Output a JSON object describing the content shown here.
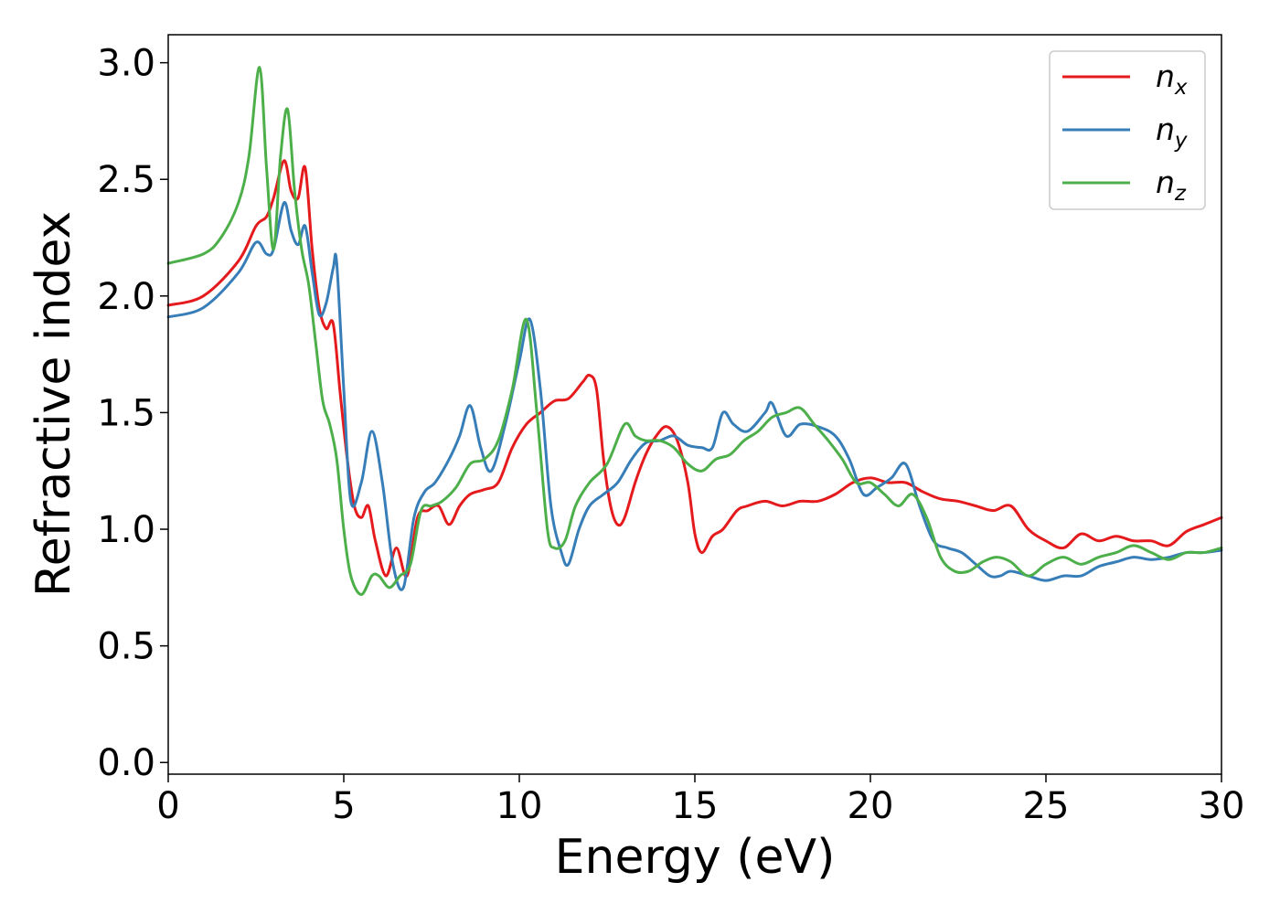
{
  "chart_data": {
    "type": "line",
    "title": "",
    "xlabel": "Energy (eV)",
    "ylabel": "Refractive index",
    "xlim": [
      0,
      30
    ],
    "ylim": [
      -0.05,
      3.12
    ],
    "xticks": [
      0,
      5,
      10,
      15,
      20,
      25,
      30
    ],
    "xtick_labels": [
      "0",
      "5",
      "10",
      "15",
      "20",
      "25",
      "30"
    ],
    "yticks": [
      0.0,
      0.5,
      1.0,
      1.5,
      2.0,
      2.5,
      3.0
    ],
    "ytick_labels": [
      "0.0",
      "0.5",
      "1.0",
      "1.5",
      "2.0",
      "2.5",
      "3.0"
    ],
    "grid": false,
    "legend_position": "top-right",
    "series": [
      {
        "name": "n",
        "subscript": "x",
        "color": "#e41a1c",
        "x": [
          0,
          1,
          2,
          2.5,
          2.8,
          3.0,
          3.3,
          3.5,
          3.7,
          3.9,
          4.1,
          4.3,
          4.5,
          4.7,
          4.9,
          5.1,
          5.3,
          5.5,
          5.7,
          5.9,
          6.2,
          6.5,
          6.8,
          7.1,
          7.4,
          7.7,
          8.0,
          8.3,
          8.6,
          9.0,
          9.4,
          9.8,
          10.2,
          10.6,
          11.0,
          11.4,
          11.8,
          12.0,
          12.2,
          12.4,
          12.6,
          12.8,
          13.0,
          13.3,
          13.6,
          13.9,
          14.2,
          14.5,
          14.8,
          15.0,
          15.2,
          15.5,
          15.8,
          16.2,
          16.5,
          17.0,
          17.5,
          18.0,
          18.5,
          19.0,
          19.5,
          20.0,
          20.5,
          21.0,
          21.5,
          22.0,
          22.5,
          23.0,
          23.5,
          24.0,
          24.5,
          25.0,
          25.5,
          26.0,
          26.5,
          27.0,
          27.5,
          28.0,
          28.5,
          29.0,
          29.5,
          30.0
        ],
        "y": [
          1.96,
          2.0,
          2.15,
          2.3,
          2.34,
          2.42,
          2.58,
          2.45,
          2.42,
          2.55,
          2.2,
          1.95,
          1.86,
          1.88,
          1.58,
          1.3,
          1.1,
          1.05,
          1.1,
          0.95,
          0.8,
          0.92,
          0.8,
          1.05,
          1.08,
          1.1,
          1.02,
          1.1,
          1.15,
          1.17,
          1.2,
          1.35,
          1.45,
          1.5,
          1.55,
          1.56,
          1.63,
          1.66,
          1.6,
          1.3,
          1.1,
          1.02,
          1.05,
          1.2,
          1.32,
          1.4,
          1.44,
          1.38,
          1.2,
          0.98,
          0.9,
          0.97,
          1.0,
          1.08,
          1.1,
          1.12,
          1.1,
          1.12,
          1.12,
          1.15,
          1.2,
          1.22,
          1.2,
          1.2,
          1.16,
          1.13,
          1.12,
          1.1,
          1.08,
          1.1,
          1.0,
          0.95,
          0.92,
          0.98,
          0.95,
          0.97,
          0.95,
          0.95,
          0.93,
          0.99,
          1.02,
          1.05
        ]
      },
      {
        "name": "n",
        "subscript": "y",
        "color": "#377eb8",
        "x": [
          0,
          1,
          2,
          2.5,
          2.8,
          3.0,
          3.3,
          3.5,
          3.7,
          3.9,
          4.1,
          4.3,
          4.5,
          4.7,
          4.8,
          5.0,
          5.2,
          5.5,
          5.8,
          6.1,
          6.4,
          6.7,
          7.0,
          7.3,
          7.6,
          8.0,
          8.3,
          8.6,
          8.9,
          9.2,
          9.6,
          10.0,
          10.3,
          10.6,
          10.9,
          11.2,
          11.4,
          11.7,
          12.0,
          12.4,
          12.8,
          13.2,
          13.6,
          14.0,
          14.4,
          14.8,
          15.2,
          15.5,
          15.8,
          16.1,
          16.5,
          17.0,
          17.2,
          17.6,
          18.0,
          18.5,
          19.0,
          19.4,
          19.8,
          20.2,
          20.6,
          21.0,
          21.4,
          21.8,
          22.2,
          22.6,
          23.0,
          23.4,
          23.7,
          24.0,
          24.5,
          25.0,
          25.5,
          26.0,
          26.5,
          27.0,
          27.5,
          28.0,
          28.5,
          29.0,
          29.5,
          30.0
        ],
        "y": [
          1.91,
          1.95,
          2.1,
          2.23,
          2.18,
          2.2,
          2.4,
          2.28,
          2.22,
          2.3,
          2.1,
          1.92,
          1.97,
          2.12,
          2.14,
          1.6,
          1.12,
          1.2,
          1.42,
          1.2,
          0.85,
          0.75,
          1.05,
          1.16,
          1.2,
          1.3,
          1.4,
          1.53,
          1.35,
          1.25,
          1.45,
          1.72,
          1.9,
          1.6,
          1.1,
          0.9,
          0.85,
          1.0,
          1.1,
          1.15,
          1.2,
          1.3,
          1.37,
          1.38,
          1.4,
          1.36,
          1.35,
          1.35,
          1.5,
          1.45,
          1.42,
          1.5,
          1.54,
          1.4,
          1.45,
          1.44,
          1.4,
          1.3,
          1.15,
          1.18,
          1.22,
          1.28,
          1.1,
          0.95,
          0.92,
          0.9,
          0.85,
          0.8,
          0.8,
          0.82,
          0.8,
          0.78,
          0.8,
          0.8,
          0.84,
          0.86,
          0.88,
          0.87,
          0.88,
          0.9,
          0.9,
          0.91
        ]
      },
      {
        "name": "n",
        "subscript": "z",
        "color": "#4daf4a",
        "x": [
          0,
          1,
          1.5,
          2.0,
          2.3,
          2.6,
          2.8,
          3.0,
          3.2,
          3.4,
          3.6,
          3.8,
          4.0,
          4.2,
          4.4,
          4.6,
          4.8,
          5.0,
          5.2,
          5.5,
          5.8,
          6.0,
          6.3,
          6.6,
          6.9,
          7.2,
          7.5,
          7.8,
          8.2,
          8.6,
          9.0,
          9.4,
          9.8,
          10.2,
          10.5,
          10.8,
          11.0,
          11.3,
          11.6,
          12.0,
          12.5,
          13.0,
          13.3,
          13.6,
          14.0,
          14.4,
          14.8,
          15.2,
          15.6,
          16.0,
          16.4,
          16.8,
          17.2,
          17.6,
          18.0,
          18.4,
          18.8,
          19.2,
          19.6,
          20.0,
          20.4,
          20.8,
          21.2,
          21.6,
          22.0,
          22.4,
          22.8,
          23.2,
          23.6,
          24.0,
          24.5,
          25.0,
          25.5,
          26.0,
          26.5,
          27.0,
          27.5,
          28.0,
          28.5,
          29.0,
          29.5,
          30.0
        ],
        "y": [
          2.14,
          2.18,
          2.25,
          2.4,
          2.6,
          2.98,
          2.55,
          2.2,
          2.6,
          2.8,
          2.45,
          2.2,
          2.05,
          1.8,
          1.55,
          1.45,
          1.3,
          1.0,
          0.8,
          0.72,
          0.8,
          0.8,
          0.75,
          0.8,
          0.85,
          1.08,
          1.1,
          1.12,
          1.18,
          1.28,
          1.3,
          1.38,
          1.6,
          1.9,
          1.5,
          1.0,
          0.92,
          0.95,
          1.1,
          1.2,
          1.28,
          1.45,
          1.4,
          1.38,
          1.38,
          1.35,
          1.28,
          1.25,
          1.3,
          1.32,
          1.38,
          1.42,
          1.48,
          1.5,
          1.52,
          1.45,
          1.38,
          1.3,
          1.2,
          1.2,
          1.15,
          1.1,
          1.15,
          1.05,
          0.88,
          0.82,
          0.82,
          0.86,
          0.88,
          0.86,
          0.8,
          0.85,
          0.88,
          0.85,
          0.88,
          0.9,
          0.93,
          0.9,
          0.87,
          0.9,
          0.9,
          0.92
        ]
      }
    ]
  }
}
